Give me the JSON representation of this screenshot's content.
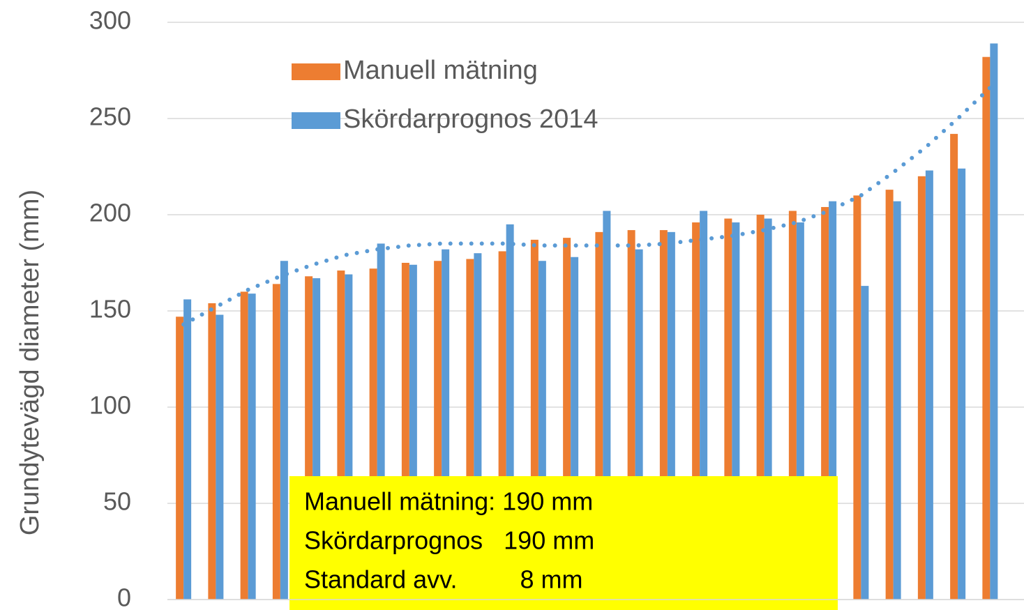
{
  "chart_data": {
    "type": "bar",
    "y_label": "Grundytevägd diameter (mm)",
    "categories": [
      null,
      null,
      null,
      null,
      null,
      null,
      null,
      null,
      null,
      null,
      null,
      null,
      null,
      null,
      null,
      null,
      null,
      null,
      null,
      null,
      null,
      null,
      null,
      null,
      null,
      null
    ],
    "series": [
      {
        "name": "Manuell mätning",
        "color": "#ed7d31",
        "values": [
          147,
          154,
          160,
          164,
          168,
          171,
          172,
          175,
          176,
          177,
          181,
          187,
          188,
          191,
          192,
          192,
          196,
          198,
          200,
          202,
          204,
          210,
          213,
          220,
          242,
          282
        ]
      },
      {
        "name": "Skördarprognos 2014",
        "color": "#5b9bd5",
        "values": [
          156,
          148,
          159,
          176,
          167,
          169,
          185,
          174,
          182,
          180,
          195,
          176,
          178,
          202,
          182,
          191,
          202,
          196,
          198,
          196,
          207,
          163,
          207,
          223,
          224,
          289
        ]
      }
    ],
    "trendline": {
      "color": "#5b9bd5",
      "values": [
        143,
        152,
        161,
        168,
        174,
        179,
        182,
        184,
        185,
        185,
        185,
        184,
        184,
        184,
        184,
        185,
        187,
        189,
        192,
        196,
        202,
        210,
        222,
        235,
        250,
        266
      ]
    },
    "ylim": [
      0,
      300
    ],
    "yticks": [
      0,
      50,
      100,
      150,
      200,
      250,
      300
    ],
    "grid": true,
    "legend": "top-left",
    "annotations": [
      "Manuell mätning: 190 mm",
      "Skördarprognos   190 mm",
      "Standard avv.         8 mm"
    ],
    "annotation_color": "#ffff00"
  }
}
